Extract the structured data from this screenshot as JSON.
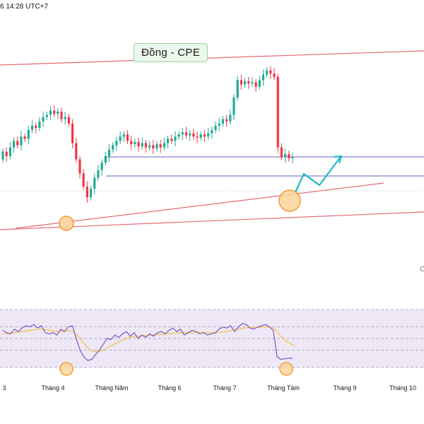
{
  "header": {
    "timestamp": "6 14:28 UTC+7"
  },
  "annotation": {
    "label": "Đồng - CPE"
  },
  "edge_glyph": "C",
  "colors": {
    "up": "#22ab94",
    "down": "#f23645",
    "trend": "#e06b72",
    "level": "#7d80c8",
    "projection": "#1fb7c9",
    "rsi_line": "#7e57c2",
    "rsi_ma": "#f5c44f",
    "rsi_band": "#ede7f6",
    "highlight_fill": "#fcd49a",
    "highlight_stroke": "#f29a2e"
  },
  "chart_data": [
    {
      "type": "candlestick",
      "x_axis": {
        "ticks": [
          "3",
          "Tháng 4",
          "Tháng Năm",
          "Tháng 6",
          "Tháng 7",
          "Tháng Tám",
          "Tháng 9",
          "Tháng 10"
        ]
      },
      "trendline_upper": "rising line across the highs",
      "trendline_lower": "rising support line through the April low",
      "horizontal_levels": 2,
      "candles": [
        {
          "o": 55,
          "c": 62
        },
        {
          "o": 62,
          "c": 58
        },
        {
          "o": 58,
          "c": 66
        },
        {
          "o": 66,
          "c": 72
        },
        {
          "o": 72,
          "c": 68
        },
        {
          "o": 68,
          "c": 76
        },
        {
          "o": 76,
          "c": 74
        },
        {
          "o": 74,
          "c": 82
        },
        {
          "o": 82,
          "c": 86
        },
        {
          "o": 86,
          "c": 84
        },
        {
          "o": 84,
          "c": 90
        },
        {
          "o": 90,
          "c": 94
        },
        {
          "o": 94,
          "c": 96
        },
        {
          "o": 96,
          "c": 100
        },
        {
          "o": 100,
          "c": 97
        },
        {
          "o": 97,
          "c": 99
        },
        {
          "o": 99,
          "c": 92
        },
        {
          "o": 92,
          "c": 94
        },
        {
          "o": 94,
          "c": 88
        },
        {
          "o": 88,
          "c": 70
        },
        {
          "o": 70,
          "c": 55
        },
        {
          "o": 55,
          "c": 42
        },
        {
          "o": 42,
          "c": 30
        },
        {
          "o": 30,
          "c": 20
        },
        {
          "o": 20,
          "c": 28
        },
        {
          "o": 28,
          "c": 38
        },
        {
          "o": 38,
          "c": 45
        },
        {
          "o": 45,
          "c": 52
        },
        {
          "o": 52,
          "c": 58
        },
        {
          "o": 58,
          "c": 64
        },
        {
          "o": 64,
          "c": 68
        },
        {
          "o": 68,
          "c": 72
        },
        {
          "o": 72,
          "c": 76
        },
        {
          "o": 76,
          "c": 78
        },
        {
          "o": 78,
          "c": 72
        },
        {
          "o": 72,
          "c": 69
        },
        {
          "o": 69,
          "c": 71
        },
        {
          "o": 71,
          "c": 67
        },
        {
          "o": 67,
          "c": 70
        },
        {
          "o": 70,
          "c": 66
        },
        {
          "o": 66,
          "c": 68
        },
        {
          "o": 68,
          "c": 65
        },
        {
          "o": 65,
          "c": 69
        },
        {
          "o": 69,
          "c": 66
        },
        {
          "o": 66,
          "c": 70
        },
        {
          "o": 70,
          "c": 74
        },
        {
          "o": 74,
          "c": 72
        },
        {
          "o": 72,
          "c": 76
        },
        {
          "o": 76,
          "c": 78
        },
        {
          "o": 78,
          "c": 80
        },
        {
          "o": 80,
          "c": 77
        },
        {
          "o": 77,
          "c": 79
        },
        {
          "o": 79,
          "c": 76
        },
        {
          "o": 76,
          "c": 75
        },
        {
          "o": 75,
          "c": 78
        },
        {
          "o": 78,
          "c": 76
        },
        {
          "o": 76,
          "c": 79
        },
        {
          "o": 79,
          "c": 82
        },
        {
          "o": 82,
          "c": 86
        },
        {
          "o": 86,
          "c": 88
        },
        {
          "o": 88,
          "c": 92
        },
        {
          "o": 92,
          "c": 90
        },
        {
          "o": 90,
          "c": 96
        },
        {
          "o": 96,
          "c": 112
        },
        {
          "o": 112,
          "c": 128
        },
        {
          "o": 128,
          "c": 124
        },
        {
          "o": 124,
          "c": 127
        },
        {
          "o": 127,
          "c": 125
        },
        {
          "o": 125,
          "c": 126
        },
        {
          "o": 126,
          "c": 122
        },
        {
          "o": 122,
          "c": 128
        },
        {
          "o": 128,
          "c": 133
        },
        {
          "o": 133,
          "c": 137
        },
        {
          "o": 137,
          "c": 134
        },
        {
          "o": 134,
          "c": 131
        },
        {
          "o": 131,
          "c": 66
        },
        {
          "o": 66,
          "c": 57
        },
        {
          "o": 57,
          "c": 60
        },
        {
          "o": 60,
          "c": 56
        },
        {
          "o": 56,
          "c": 57
        }
      ],
      "projection": "rebound path after touching support"
    },
    {
      "type": "line",
      "name_note": "oscillator panel",
      "ylim": [
        0,
        100
      ],
      "bands": [
        30,
        50,
        70
      ],
      "series": [
        {
          "values": [
            64,
            60,
            58,
            66,
            62,
            68,
            72,
            70,
            74,
            68,
            72,
            60,
            58,
            60,
            56,
            66,
            62,
            70,
            72,
            50,
            30,
            18,
            12,
            14,
            22,
            30,
            40,
            50,
            48,
            56,
            52,
            58,
            62,
            54,
            60,
            50,
            56,
            52,
            58,
            54,
            60,
            62,
            58,
            64,
            68,
            62,
            66,
            56,
            60,
            64,
            62,
            58,
            60,
            56,
            58,
            60,
            66,
            70,
            68,
            72,
            62,
            70,
            76,
            74,
            68,
            66,
            70,
            72,
            74,
            70,
            64,
            18,
            14,
            15,
            16,
            16
          ]
        },
        {
          "values": [
            58,
            58,
            59,
            60,
            61,
            62,
            63,
            64,
            65,
            66,
            66,
            65,
            64,
            63,
            62,
            62,
            63,
            64,
            62,
            56,
            48,
            40,
            32,
            28,
            27,
            28,
            31,
            35,
            38,
            42,
            45,
            48,
            51,
            53,
            54,
            54,
            55,
            55,
            56,
            56,
            57,
            57,
            58,
            58,
            59,
            60,
            60,
            60,
            60,
            60,
            61,
            61,
            60,
            60,
            60,
            60,
            61,
            62,
            63,
            65,
            66,
            67,
            68,
            69,
            69,
            69,
            69,
            70,
            70,
            69,
            64,
            56,
            49,
            44,
            40,
            37
          ]
        }
      ]
    }
  ]
}
